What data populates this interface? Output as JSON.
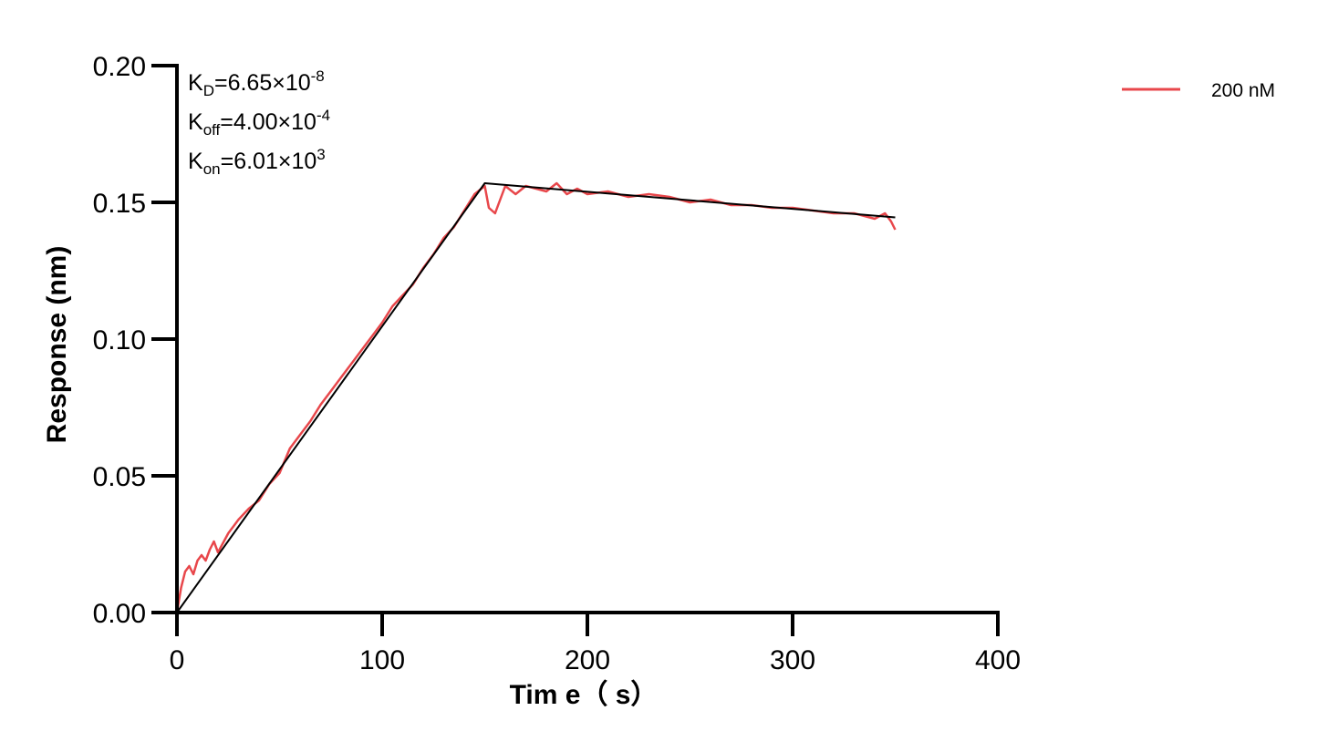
{
  "chart_data": {
    "type": "line",
    "title": "",
    "xlabel": "Tim e（ s）",
    "ylabel": "Response (nm)",
    "xlim": [
      0,
      400
    ],
    "ylim": [
      0,
      0.2
    ],
    "x_ticks": [
      "0",
      "100",
      "200",
      "300",
      "400"
    ],
    "y_ticks": [
      "0.00",
      "0.05",
      "0.10",
      "0.15",
      "0.20"
    ],
    "grid": false,
    "legend_position": "top-right",
    "annotations": {
      "kd": {
        "base": "K",
        "sub": "D",
        "value": "=6.65×10",
        "exp": "-8"
      },
      "koff": {
        "base": "K",
        "sub": "off",
        "value": "=4.00×10",
        "exp": "-4"
      },
      "kon": {
        "base": "K",
        "sub": "on",
        "value": "=6.01×10",
        "exp": "3"
      }
    },
    "series": [
      {
        "name": "200 nM",
        "color": "#e8474b",
        "x": [
          0,
          2,
          4,
          6,
          8,
          10,
          12,
          14,
          16,
          18,
          20,
          25,
          30,
          35,
          40,
          45,
          50,
          55,
          60,
          65,
          70,
          75,
          80,
          85,
          90,
          95,
          100,
          105,
          110,
          115,
          120,
          125,
          130,
          135,
          140,
          145,
          150,
          152,
          155,
          160,
          165,
          170,
          175,
          180,
          185,
          190,
          195,
          200,
          210,
          220,
          230,
          240,
          250,
          260,
          270,
          280,
          290,
          300,
          310,
          320,
          330,
          340,
          345,
          348,
          350
        ],
        "y": [
          0.0,
          0.009,
          0.015,
          0.017,
          0.014,
          0.019,
          0.021,
          0.019,
          0.023,
          0.026,
          0.022,
          0.029,
          0.034,
          0.038,
          0.041,
          0.047,
          0.051,
          0.06,
          0.065,
          0.07,
          0.076,
          0.081,
          0.086,
          0.091,
          0.096,
          0.101,
          0.106,
          0.112,
          0.116,
          0.12,
          0.126,
          0.131,
          0.137,
          0.141,
          0.147,
          0.153,
          0.156,
          0.148,
          0.146,
          0.156,
          0.153,
          0.156,
          0.155,
          0.154,
          0.157,
          0.153,
          0.155,
          0.153,
          0.154,
          0.152,
          0.153,
          0.152,
          0.15,
          0.151,
          0.149,
          0.149,
          0.148,
          0.148,
          0.147,
          0.146,
          0.146,
          0.144,
          0.146,
          0.143,
          0.14
        ]
      },
      {
        "name": "",
        "color": "#000000",
        "x": [
          0,
          150,
          350
        ],
        "y": [
          0.0,
          0.157,
          0.1445
        ]
      }
    ]
  }
}
